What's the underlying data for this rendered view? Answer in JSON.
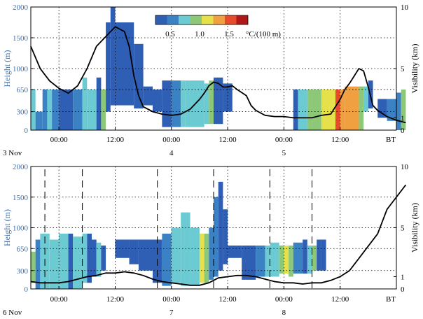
{
  "colorbar": {
    "colors": [
      "#2f5fb4",
      "#3b82c4",
      "#6ccbd2",
      "#8cc878",
      "#e6e04a",
      "#f0a040",
      "#e84a2c",
      "#b01818"
    ],
    "labels": [
      "0.5",
      "1.0",
      "1.5"
    ],
    "unit": "°C/(100 m)"
  },
  "chart_data": [
    {
      "type": "heatmap",
      "panel": "upper",
      "ylabel_left": "Height (m)",
      "ylabel_right": "Visibility (km)",
      "left_ticks": [
        "0",
        "300",
        "650",
        "1000",
        "1500",
        "2000"
      ],
      "left_tick_values": [
        0,
        300,
        650,
        1000,
        1500,
        2000
      ],
      "right_ticks": [
        "0",
        "1",
        "5",
        "10"
      ],
      "right_tick_values": [
        0,
        1,
        5,
        10
      ],
      "x_ticks": [
        "00:00",
        "12:00",
        "00:00",
        "12:00",
        "00:00",
        "12:00",
        "BT"
      ],
      "x_hours": [
        0,
        12,
        24,
        36,
        48,
        60,
        72
      ],
      "day_labels": [
        "3 Nov",
        "4",
        "5"
      ],
      "day_label_hours": [
        -3,
        24,
        48
      ],
      "xlim_hours": [
        -6,
        72
      ],
      "ylim": [
        0,
        2000
      ],
      "dashed_hours": [],
      "segments": [
        {
          "x0": -6,
          "x1": -5,
          "y0": 0,
          "y1": 650,
          "c": 2
        },
        {
          "x0": -5,
          "x1": -3.5,
          "y0": 0,
          "y1": 300,
          "c": 1
        },
        {
          "x0": -3.5,
          "x1": -2.5,
          "y0": 0,
          "y1": 650,
          "c": 1
        },
        {
          "x0": -2.5,
          "x1": -1.5,
          "y0": 0,
          "y1": 650,
          "c": 2
        },
        {
          "x0": -1.5,
          "x1": 0,
          "y0": 0,
          "y1": 650,
          "c": 1
        },
        {
          "x0": 0,
          "x1": 3,
          "y0": 0,
          "y1": 650,
          "c": 0
        },
        {
          "x0": 3,
          "x1": 5,
          "y0": 0,
          "y1": 650,
          "c": 1
        },
        {
          "x0": 5,
          "x1": 6,
          "y0": 0,
          "y1": 850,
          "c": 2
        },
        {
          "x0": 6,
          "x1": 8,
          "y0": 0,
          "y1": 650,
          "c": 2
        },
        {
          "x0": 8,
          "x1": 9,
          "y0": 0,
          "y1": 850,
          "c": 0
        },
        {
          "x0": 9,
          "x1": 10,
          "y0": 0,
          "y1": 650,
          "c": 3
        },
        {
          "x0": 10,
          "x1": 11,
          "y0": 300,
          "y1": 1750,
          "c": 0
        },
        {
          "x0": 11,
          "x1": 12,
          "y0": 400,
          "y1": 2000,
          "c": 0
        },
        {
          "x0": 12,
          "x1": 16,
          "y0": 400,
          "y1": 1750,
          "c": 0
        },
        {
          "x0": 16,
          "x1": 18,
          "y0": 350,
          "y1": 1400,
          "c": 0
        },
        {
          "x0": 18,
          "x1": 20,
          "y0": 400,
          "y1": 700,
          "c": 0
        },
        {
          "x0": 20,
          "x1": 22,
          "y0": 300,
          "y1": 650,
          "c": 0
        },
        {
          "x0": 22,
          "x1": 24,
          "y0": 50,
          "y1": 800,
          "c": 0
        },
        {
          "x0": 24,
          "x1": 26,
          "y0": 50,
          "y1": 800,
          "c": 1
        },
        {
          "x0": 26,
          "x1": 27,
          "y0": 50,
          "y1": 800,
          "c": 2
        },
        {
          "x0": 27,
          "x1": 31,
          "y0": 50,
          "y1": 800,
          "c": 2
        },
        {
          "x0": 31,
          "x1": 32,
          "y0": 100,
          "y1": 750,
          "c": 2
        },
        {
          "x0": 32,
          "x1": 33,
          "y0": 100,
          "y1": 800,
          "c": 3
        },
        {
          "x0": 33,
          "x1": 35,
          "y0": 100,
          "y1": 850,
          "c": 0
        },
        {
          "x0": 35,
          "x1": 37,
          "y0": 300,
          "y1": 750,
          "c": 0
        },
        {
          "x0": 50,
          "x1": 51,
          "y0": 0,
          "y1": 650,
          "c": 0
        },
        {
          "x0": 51,
          "x1": 53,
          "y0": 0,
          "y1": 650,
          "c": 2
        },
        {
          "x0": 53,
          "x1": 54,
          "y0": 0,
          "y1": 650,
          "c": 3
        },
        {
          "x0": 54,
          "x1": 56,
          "y0": 0,
          "y1": 650,
          "c": 3
        },
        {
          "x0": 56,
          "x1": 59,
          "y0": 0,
          "y1": 650,
          "c": 4
        },
        {
          "x0": 59,
          "x1": 60,
          "y0": 0,
          "y1": 650,
          "c": 6
        },
        {
          "x0": 60,
          "x1": 61,
          "y0": 0,
          "y1": 650,
          "c": 5
        },
        {
          "x0": 61,
          "x1": 64,
          "y0": 0,
          "y1": 700,
          "c": 5
        },
        {
          "x0": 64,
          "x1": 65,
          "y0": 0,
          "y1": 700,
          "c": 3
        },
        {
          "x0": 65,
          "x1": 66,
          "y0": 300,
          "y1": 700,
          "c": 2
        },
        {
          "x0": 66,
          "x1": 67,
          "y0": 350,
          "y1": 800,
          "c": 0
        },
        {
          "x0": 68,
          "x1": 70,
          "y0": 200,
          "y1": 500,
          "c": 0
        },
        {
          "x0": 70,
          "x1": 72,
          "y0": 150,
          "y1": 500,
          "c": 1
        },
        {
          "x0": 72,
          "x1": 73,
          "y0": 0,
          "y1": 600,
          "c": 1
        },
        {
          "x0": 73,
          "x1": 74,
          "y0": 0,
          "y1": 650,
          "c": 3
        }
      ],
      "visibility": {
        "x_hours": [
          -6,
          -4,
          -2,
          0,
          2,
          4,
          6,
          8,
          10,
          12,
          14,
          15,
          16,
          17,
          18,
          20,
          22,
          24,
          26,
          28,
          30,
          31,
          32,
          33,
          34,
          35,
          36,
          37,
          38,
          40,
          41,
          42,
          44,
          46,
          48,
          50,
          52,
          54,
          56,
          58,
          60,
          61,
          62,
          63,
          64,
          65,
          66,
          67,
          68,
          70,
          72,
          74
        ],
        "values": [
          6.8,
          5.0,
          4.0,
          3.4,
          3.0,
          3.6,
          5.0,
          6.8,
          7.6,
          8.4,
          8.0,
          6.8,
          4.4,
          2.8,
          1.9,
          1.5,
          1.3,
          1.2,
          1.3,
          1.7,
          2.5,
          3.0,
          3.6,
          3.9,
          3.8,
          3.5,
          3.5,
          3.6,
          3.3,
          2.8,
          2.0,
          1.6,
          1.2,
          1.1,
          1.1,
          1.0,
          1.0,
          1.0,
          1.2,
          1.3,
          2.5,
          3.3,
          3.8,
          4.4,
          5.0,
          4.8,
          3.5,
          2.0,
          1.6,
          1.1,
          0.8,
          0.6
        ]
      }
    },
    {
      "type": "heatmap",
      "panel": "lower",
      "ylabel_left": "Height (m)",
      "ylabel_right": "Visibility (km)",
      "left_ticks": [
        "0",
        "300",
        "650",
        "1000",
        "1500",
        "2000"
      ],
      "left_tick_values": [
        0,
        300,
        650,
        1000,
        1500,
        2000
      ],
      "right_ticks": [
        "0",
        "1",
        "5",
        "10"
      ],
      "right_tick_values": [
        0,
        1,
        5,
        10
      ],
      "x_ticks": [
        "00:00",
        "12:00",
        "00:00",
        "12:00",
        "00:00",
        "12:00",
        "BT"
      ],
      "x_hours": [
        0,
        12,
        24,
        36,
        48,
        60,
        72
      ],
      "day_labels": [
        "6 Nov",
        "7",
        "8"
      ],
      "day_label_hours": [
        -3,
        24,
        48
      ],
      "xlim_hours": [
        -6,
        72
      ],
      "ylim": [
        0,
        2000
      ],
      "dashed_hours": [
        -3,
        5,
        21,
        33,
        45,
        54
      ],
      "segments": [
        {
          "x0": -6,
          "x1": -5,
          "y0": 100,
          "y1": 600,
          "c": 3
        },
        {
          "x0": -5,
          "x1": -4,
          "y0": 0,
          "y1": 800,
          "c": 1
        },
        {
          "x0": -4,
          "x1": -2,
          "y0": 0,
          "y1": 900,
          "c": 2
        },
        {
          "x0": -2,
          "x1": 0,
          "y0": 0,
          "y1": 800,
          "c": 2
        },
        {
          "x0": 0,
          "x1": 2,
          "y0": 0,
          "y1": 900,
          "c": 2
        },
        {
          "x0": 2,
          "x1": 3,
          "y0": 0,
          "y1": 900,
          "c": 0
        },
        {
          "x0": 3,
          "x1": 5,
          "y0": 0,
          "y1": 850,
          "c": 2
        },
        {
          "x0": 5,
          "x1": 6,
          "y0": 100,
          "y1": 900,
          "c": 2
        },
        {
          "x0": 6,
          "x1": 7,
          "y0": 100,
          "y1": 900,
          "c": 0
        },
        {
          "x0": 7,
          "x1": 8,
          "y0": 200,
          "y1": 800,
          "c": 0
        },
        {
          "x0": 8,
          "x1": 9,
          "y0": 200,
          "y1": 750,
          "c": 2
        },
        {
          "x0": 9,
          "x1": 10,
          "y0": 300,
          "y1": 700,
          "c": 0
        },
        {
          "x0": 12,
          "x1": 15,
          "y0": 500,
          "y1": 800,
          "c": 0
        },
        {
          "x0": 15,
          "x1": 17,
          "y0": 400,
          "y1": 800,
          "c": 0
        },
        {
          "x0": 17,
          "x1": 20,
          "y0": 300,
          "y1": 800,
          "c": 0
        },
        {
          "x0": 20,
          "x1": 22,
          "y0": 100,
          "y1": 800,
          "c": 0
        },
        {
          "x0": 22,
          "x1": 24,
          "y0": 50,
          "y1": 900,
          "c": 1
        },
        {
          "x0": 24,
          "x1": 26,
          "y0": 100,
          "y1": 1000,
          "c": 2
        },
        {
          "x0": 26,
          "x1": 28,
          "y0": 50,
          "y1": 1250,
          "c": 2
        },
        {
          "x0": 28,
          "x1": 30,
          "y0": 50,
          "y1": 1000,
          "c": 2
        },
        {
          "x0": 30,
          "x1": 31,
          "y0": 100,
          "y1": 900,
          "c": 4
        },
        {
          "x0": 31,
          "x1": 32,
          "y0": 100,
          "y1": 900,
          "c": 3
        },
        {
          "x0": 32,
          "x1": 33,
          "y0": 150,
          "y1": 1000,
          "c": 1
        },
        {
          "x0": 33,
          "x1": 34,
          "y0": 200,
          "y1": 1500,
          "c": 1
        },
        {
          "x0": 34,
          "x1": 35,
          "y0": 300,
          "y1": 1750,
          "c": 0
        },
        {
          "x0": 35,
          "x1": 36,
          "y0": 400,
          "y1": 1300,
          "c": 0
        },
        {
          "x0": 36,
          "x1": 39,
          "y0": 500,
          "y1": 700,
          "c": 0
        },
        {
          "x0": 39,
          "x1": 42,
          "y0": 150,
          "y1": 700,
          "c": 0
        },
        {
          "x0": 42,
          "x1": 44,
          "y0": 200,
          "y1": 700,
          "c": 1
        },
        {
          "x0": 44,
          "x1": 45,
          "y0": 200,
          "y1": 700,
          "c": 2
        },
        {
          "x0": 45,
          "x1": 47,
          "y0": 200,
          "y1": 750,
          "c": 2
        },
        {
          "x0": 47,
          "x1": 48,
          "y0": 250,
          "y1": 700,
          "c": 3
        },
        {
          "x0": 48,
          "x1": 49,
          "y0": 250,
          "y1": 700,
          "c": 4
        },
        {
          "x0": 49,
          "x1": 50,
          "y0": 200,
          "y1": 700,
          "c": 3
        },
        {
          "x0": 50,
          "x1": 52,
          "y0": 250,
          "y1": 750,
          "c": 1
        },
        {
          "x0": 52,
          "x1": 53,
          "y0": 250,
          "y1": 800,
          "c": 0
        },
        {
          "x0": 53,
          "x1": 54,
          "y0": 250,
          "y1": 700,
          "c": 2
        },
        {
          "x0": 54,
          "x1": 55,
          "y0": 300,
          "y1": 700,
          "c": 3
        },
        {
          "x0": 55,
          "x1": 56,
          "y0": 300,
          "y1": 800,
          "c": 0
        },
        {
          "x0": 56,
          "x1": 57,
          "y0": 300,
          "y1": 800,
          "c": 0
        }
      ],
      "visibility": {
        "x_hours": [
          -6,
          -4,
          -2,
          0,
          2,
          4,
          6,
          8,
          10,
          12,
          14,
          16,
          18,
          20,
          22,
          24,
          26,
          28,
          30,
          32,
          34,
          36,
          38,
          40,
          42,
          44,
          46,
          48,
          50,
          52,
          54,
          56,
          58,
          60,
          62,
          64,
          66,
          68,
          69,
          70,
          71,
          72,
          73,
          74
        ],
        "values": [
          0.6,
          0.5,
          0.5,
          0.5,
          0.6,
          0.8,
          1.0,
          1.1,
          1.3,
          1.3,
          1.4,
          1.3,
          1.1,
          0.8,
          0.6,
          0.5,
          0.4,
          0.3,
          0.3,
          0.5,
          0.9,
          1.0,
          1.1,
          1.1,
          1.0,
          0.8,
          0.6,
          0.5,
          0.5,
          0.4,
          0.5,
          0.5,
          0.7,
          1.0,
          1.5,
          2.5,
          3.5,
          4.5,
          5.5,
          6.5,
          7.0,
          7.5,
          8.0,
          8.5
        ]
      }
    }
  ]
}
